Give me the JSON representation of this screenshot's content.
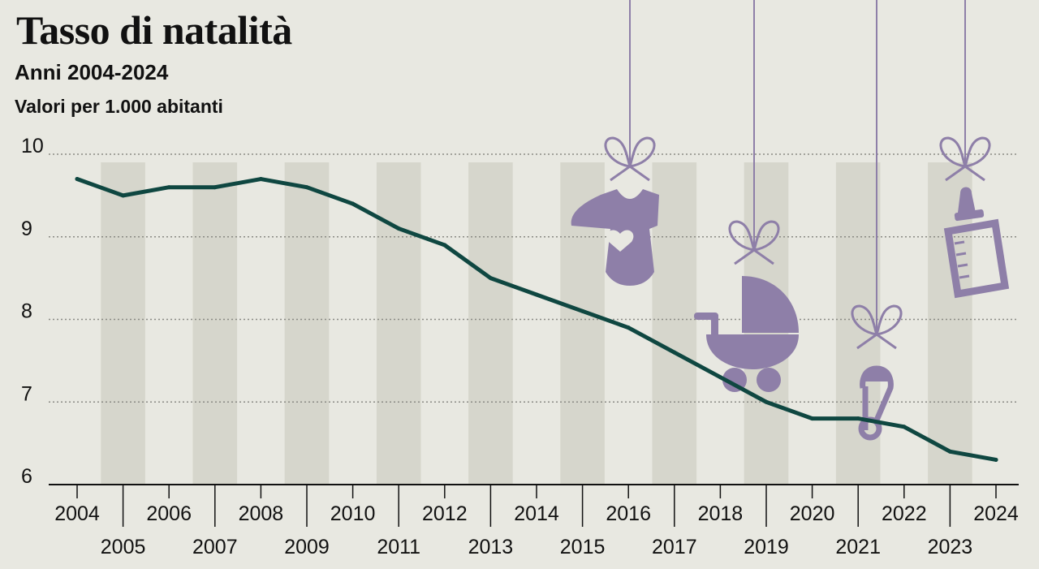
{
  "header": {
    "title": "Tasso di natalità",
    "subtitle": "Anni 2004-2024",
    "unit": "Valori per 1.000 abitanti"
  },
  "colors": {
    "background": "#e8e8e1",
    "stripe": "#d6d6cc",
    "line": "#0f4741",
    "icon": "#8e7fa8",
    "grid": "#8a8a84"
  },
  "icons": [
    "baby-onesie-icon",
    "baby-stroller-icon",
    "safety-pin-icon",
    "baby-bottle-icon"
  ],
  "chart_data": {
    "type": "line",
    "x": [
      2004,
      2005,
      2006,
      2007,
      2008,
      2009,
      2010,
      2011,
      2012,
      2013,
      2014,
      2015,
      2016,
      2017,
      2018,
      2019,
      2020,
      2021,
      2022,
      2023,
      2024
    ],
    "series": [
      {
        "values": [
          9.7,
          9.5,
          9.6,
          9.6,
          9.7,
          9.6,
          9.4,
          9.1,
          8.9,
          8.5,
          8.3,
          8.1,
          7.9,
          7.6,
          7.3,
          7.0,
          6.8,
          6.8,
          6.7,
          6.4,
          6.3
        ]
      }
    ],
    "x_tick_labels": [
      "2004",
      "2005",
      "2006",
      "2007",
      "2008",
      "2009",
      "2010",
      "2011",
      "2012",
      "2013",
      "2014",
      "2015",
      "2016",
      "2017",
      "2018",
      "2019",
      "2020",
      "2021",
      "2022",
      "2023",
      "2024"
    ],
    "y_tick_labels": [
      "6",
      "7",
      "8",
      "9",
      "10"
    ],
    "y_ticks": [
      6,
      7,
      8,
      9,
      10
    ],
    "ylim": [
      6,
      10
    ],
    "grid": true,
    "legend": "none"
  }
}
